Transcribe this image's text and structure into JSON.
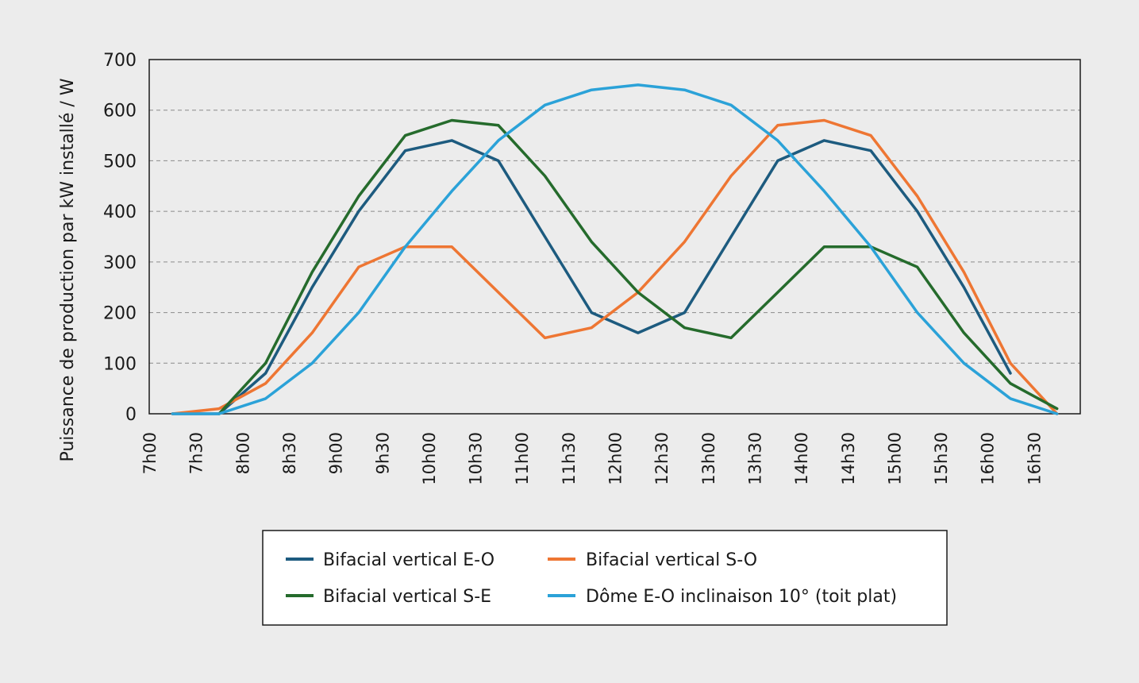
{
  "chart_data": {
    "type": "line",
    "title": "",
    "xlabel": "",
    "ylabel": "Puissance de production par kW installé / W",
    "ylim": [
      0,
      700
    ],
    "yticks": [
      "0",
      "100",
      "200",
      "300",
      "400",
      "500",
      "600",
      "700"
    ],
    "categories": [
      "7h00",
      "7h30",
      "8h00",
      "8h30",
      "9h00",
      "9h30",
      "10h00",
      "10h30",
      "11h00",
      "11h30",
      "12h00",
      "12h30",
      "13h00",
      "13h30",
      "14h00",
      "14h30",
      "15h00",
      "15h30",
      "16h00",
      "16h30"
    ],
    "x": [
      7.25,
      7.75,
      8.25,
      8.75,
      9.25,
      9.75,
      10.25,
      10.75,
      11.25,
      11.75,
      12.25,
      12.75,
      13.25,
      13.75,
      14.25,
      14.75,
      15.25,
      15.75,
      16.25,
      16.75
    ],
    "grid": {
      "horizontal": true,
      "style": "dashed"
    },
    "legend_position": "bottom",
    "series": [
      {
        "name": "Bifacial vertical E-O",
        "color": "#1d5b7f",
        "x": [
          7.25,
          7.75,
          8.25,
          8.75,
          9.25,
          9.75,
          10.25,
          10.75,
          11.25,
          11.75,
          12.25,
          12.75,
          13.25,
          13.75,
          14.25,
          14.75,
          15.25,
          15.75,
          16.25
        ],
        "values": [
          0,
          0,
          80,
          250,
          400,
          520,
          540,
          500,
          350,
          200,
          160,
          200,
          350,
          500,
          540,
          520,
          400,
          250,
          80
        ]
      },
      {
        "name": "Bifacial vertical S-O",
        "color": "#ee7633",
        "x": [
          7.25,
          7.75,
          8.25,
          8.75,
          9.25,
          9.75,
          10.25,
          10.75,
          11.25,
          11.75,
          12.25,
          12.75,
          13.25,
          13.75,
          14.25,
          14.75,
          15.25,
          15.75,
          16.25,
          16.75
        ],
        "values": [
          0,
          10,
          60,
          160,
          290,
          330,
          330,
          240,
          150,
          170,
          240,
          340,
          470,
          570,
          580,
          550,
          430,
          280,
          100,
          0
        ]
      },
      {
        "name": "Bifacial vertical S-E",
        "color": "#256b2c",
        "x": [
          7.75,
          8.25,
          8.75,
          9.25,
          9.75,
          10.25,
          10.75,
          11.25,
          11.75,
          12.25,
          12.75,
          13.25,
          13.75,
          14.25,
          14.75,
          15.25,
          15.75,
          16.25,
          16.75
        ],
        "values": [
          0,
          100,
          280,
          430,
          550,
          580,
          570,
          470,
          340,
          240,
          170,
          150,
          240,
          330,
          330,
          290,
          160,
          60,
          10
        ]
      },
      {
        "name": "Dôme E-O inclinaison 10° (toit plat)",
        "color": "#2ba2d8",
        "x": [
          7.25,
          7.75,
          8.25,
          8.75,
          9.25,
          9.75,
          10.25,
          10.75,
          11.25,
          11.75,
          12.25,
          12.75,
          13.25,
          13.75,
          14.25,
          14.75,
          15.25,
          15.75,
          16.25,
          16.75
        ],
        "values": [
          0,
          0,
          30,
          100,
          200,
          330,
          440,
          540,
          610,
          640,
          650,
          640,
          610,
          540,
          440,
          330,
          200,
          100,
          30,
          0
        ]
      }
    ]
  }
}
